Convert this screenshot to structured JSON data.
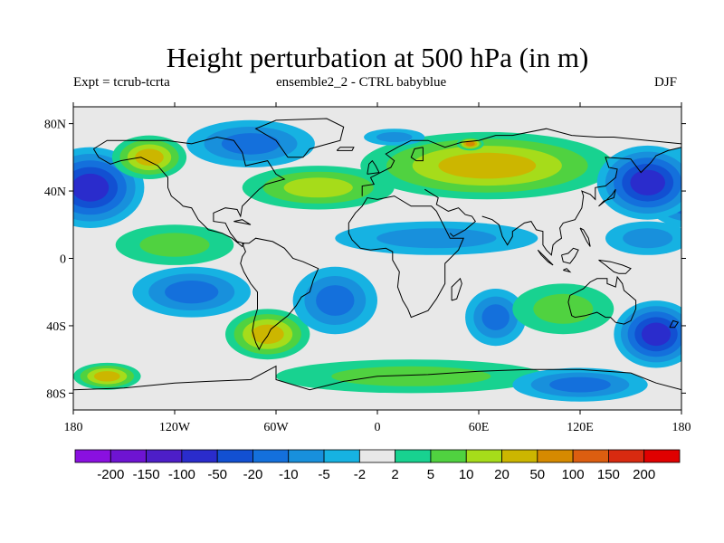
{
  "chart_data": {
    "type": "heatmap",
    "title": "Height perturbation at 500 hPa (in m)",
    "subtitle_left": "Expt = tcrub-tcrta",
    "subtitle_center": "ensemble2_2 - CTRL babyblue",
    "subtitle_right": "DJF",
    "xlabel": "",
    "ylabel": "",
    "xlim": [
      -180,
      180
    ],
    "ylim": [
      -90,
      90
    ],
    "x_ticks": [
      {
        "value": -180,
        "label": "180"
      },
      {
        "value": -120,
        "label": "120W"
      },
      {
        "value": -60,
        "label": "60W"
      },
      {
        "value": 0,
        "label": "0"
      },
      {
        "value": 60,
        "label": "60E"
      },
      {
        "value": 120,
        "label": "120E"
      },
      {
        "value": 180,
        "label": "180"
      }
    ],
    "y_ticks": [
      {
        "value": 80,
        "label": "80N"
      },
      {
        "value": 40,
        "label": "40N"
      },
      {
        "value": 0,
        "label": "0"
      },
      {
        "value": -40,
        "label": "40S"
      },
      {
        "value": -80,
        "label": "80S"
      }
    ],
    "colorbar": {
      "levels": [
        "-200",
        "-150",
        "-100",
        "-50",
        "-20",
        "-10",
        "-5",
        "-2",
        "2",
        "5",
        "10",
        "20",
        "50",
        "100",
        "150",
        "200"
      ],
      "colors": [
        "#8a10e0",
        "#6e14d2",
        "#4d1ec8",
        "#2a2ccc",
        "#1250d2",
        "#1470dc",
        "#1890dc",
        "#16b2e2",
        "#e8e8e8",
        "#18d290",
        "#50d240",
        "#a6dc1a",
        "#ccb600",
        "#d68a00",
        "#dc5e10",
        "#d82a10",
        "#e00000"
      ]
    },
    "regions": [
      {
        "name": "arctic",
        "lon": 0,
        "lat": 84,
        "rlon": 200,
        "rlat": 8,
        "bin": 8
      },
      {
        "name": "north-pacific-low",
        "lon": -170,
        "lat": 42,
        "rlon": 32,
        "rlat": 24,
        "bin": 3
      },
      {
        "name": "north-pacific-low-east",
        "lon": 185,
        "lat": 42,
        "rlon": 30,
        "rlat": 24,
        "bin": 3
      },
      {
        "name": "alaska-high",
        "lon": -135,
        "lat": 60,
        "rlon": 22,
        "rlat": 13,
        "bin": 12
      },
      {
        "name": "canada-arctic-low",
        "lon": -75,
        "lat": 68,
        "rlon": 38,
        "rlat": 14,
        "bin": 5
      },
      {
        "name": "north-atlantic-high",
        "lon": -35,
        "lat": 42,
        "rlon": 45,
        "rlat": 13,
        "bin": 11
      },
      {
        "name": "eurasia-high",
        "lon": 65,
        "lat": 55,
        "rlon": 75,
        "rlat": 20,
        "bin": 12
      },
      {
        "name": "siberia-peak",
        "lon": 55,
        "lat": 68,
        "rlon": 8,
        "rlat": 4,
        "bin": 13
      },
      {
        "name": "barents-low",
        "lon": 10,
        "lat": 72,
        "rlon": 18,
        "rlat": 5,
        "bin": 6
      },
      {
        "name": "east-asia-low",
        "lon": 160,
        "lat": 45,
        "rlon": 30,
        "rlat": 22,
        "bin": 3
      },
      {
        "name": "tropics-west",
        "lon": -120,
        "lat": 8,
        "rlon": 35,
        "rlat": 12,
        "bin": 10
      },
      {
        "name": "tropics-africa",
        "lon": 35,
        "lat": 12,
        "rlon": 60,
        "rlat": 10,
        "bin": 6
      },
      {
        "name": "tropics-east",
        "lon": 160,
        "lat": 12,
        "rlon": 25,
        "rlat": 10,
        "bin": 6
      },
      {
        "name": "south-pacific-low",
        "lon": -110,
        "lat": -20,
        "rlon": 35,
        "rlat": 15,
        "bin": 5
      },
      {
        "name": "south-america-high",
        "lon": -65,
        "lat": -45,
        "rlon": 25,
        "rlat": 15,
        "bin": 12
      },
      {
        "name": "south-atlantic-low",
        "lon": -25,
        "lat": -25,
        "rlon": 25,
        "rlat": 20,
        "bin": 5
      },
      {
        "name": "indian-ocean-low",
        "lon": 70,
        "lat": -35,
        "rlon": 18,
        "rlat": 17,
        "bin": 5
      },
      {
        "name": "australia-high",
        "lon": 110,
        "lat": -30,
        "rlon": 30,
        "rlat": 15,
        "bin": 10
      },
      {
        "name": "southeast-pacific-low",
        "lon": 165,
        "lat": -45,
        "rlon": 25,
        "rlat": 20,
        "bin": 3
      },
      {
        "name": "southern-ocean-band",
        "lon": 20,
        "lat": -70,
        "rlon": 80,
        "rlat": 10,
        "bin": 10
      },
      {
        "name": "antarctic-west-high",
        "lon": -160,
        "lat": -70,
        "rlon": 20,
        "rlat": 8,
        "bin": 12
      },
      {
        "name": "antarctic-east-low",
        "lon": 120,
        "lat": -75,
        "rlon": 40,
        "rlat": 10,
        "bin": 5
      }
    ]
  }
}
